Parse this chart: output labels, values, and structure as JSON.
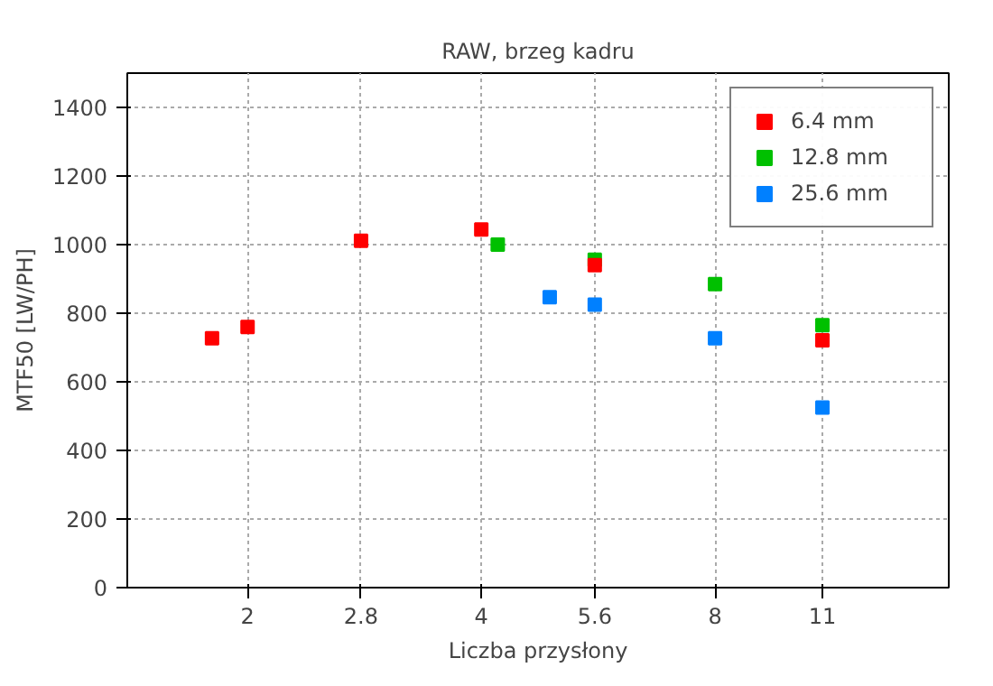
{
  "chart_data": {
    "type": "scatter",
    "title": "RAW, brzeg kadru",
    "xlabel": "Liczba przysłony",
    "ylabel": "MTF50 [LW/PH]",
    "log": "x",
    "xlim": [
      1.4,
      16
    ],
    "xticks": [
      2,
      2.8,
      4,
      5.6,
      8,
      11
    ],
    "ylim": [
      0,
      1500
    ],
    "yticks": [
      0,
      200,
      400,
      600,
      800,
      1000,
      1200,
      1400
    ],
    "grid": true,
    "legend": "top right",
    "marker": "square",
    "series": [
      {
        "name": "6.4 mm",
        "color": "#ff0000",
        "x": [
          1.8,
          2,
          2.8,
          4,
          5.6,
          11
        ],
        "values": [
          727,
          760,
          1011,
          1044,
          940,
          721
        ]
      },
      {
        "name": "12.8 mm",
        "color": "#00c000",
        "x": [
          4.2,
          5.6,
          8,
          11
        ],
        "values": [
          1000,
          956,
          885,
          765
        ]
      },
      {
        "name": "25.6 mm",
        "color": "#0080ff",
        "x": [
          4.9,
          5.6,
          8,
          11
        ],
        "values": [
          847,
          825,
          727,
          525
        ]
      }
    ]
  }
}
